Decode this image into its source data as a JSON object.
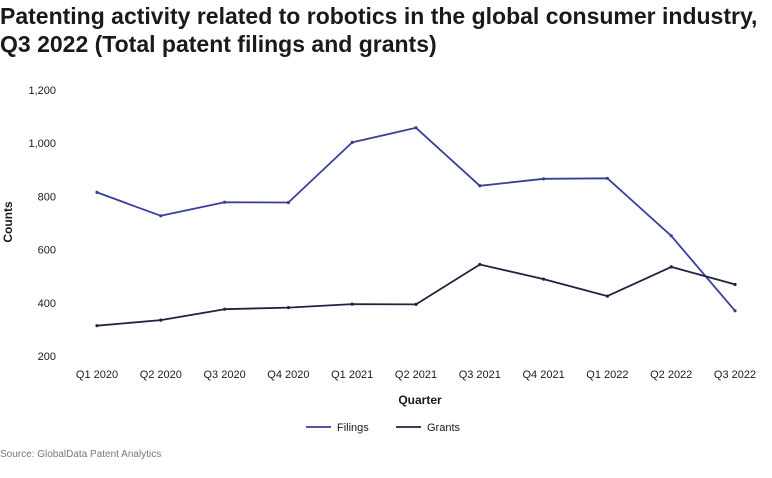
{
  "title": "Patenting activity related to robotics in the global consumer industry, Q3 2022 (Total patent filings and grants)",
  "source": "Source: GlobalData Patent Analytics",
  "chart_data": {
    "type": "line",
    "categories": [
      "Q1 2020",
      "Q2 2020",
      "Q3 2020",
      "Q4 2020",
      "Q1 2021",
      "Q2 2021",
      "Q3 2021",
      "Q4 2021",
      "Q1 2022",
      "Q2 2022",
      "Q3 2022"
    ],
    "series": [
      {
        "name": "Filings",
        "color": "#3a3f9a",
        "values": [
          815,
          727,
          778,
          777,
          1003,
          1058,
          840,
          866,
          868,
          652,
          370
        ]
      },
      {
        "name": "Grants",
        "color": "#22233f",
        "values": [
          314,
          335,
          376,
          382,
          395,
          394,
          544,
          489,
          425,
          535,
          469
        ]
      }
    ],
    "yticks": [
      "200",
      "400",
      "600",
      "800",
      "1,000",
      "1,200"
    ],
    "ylim": [
      200,
      1200
    ],
    "xlabel": "Quarter",
    "ylabel": "Counts",
    "grid": false,
    "legend_position": "bottom"
  }
}
